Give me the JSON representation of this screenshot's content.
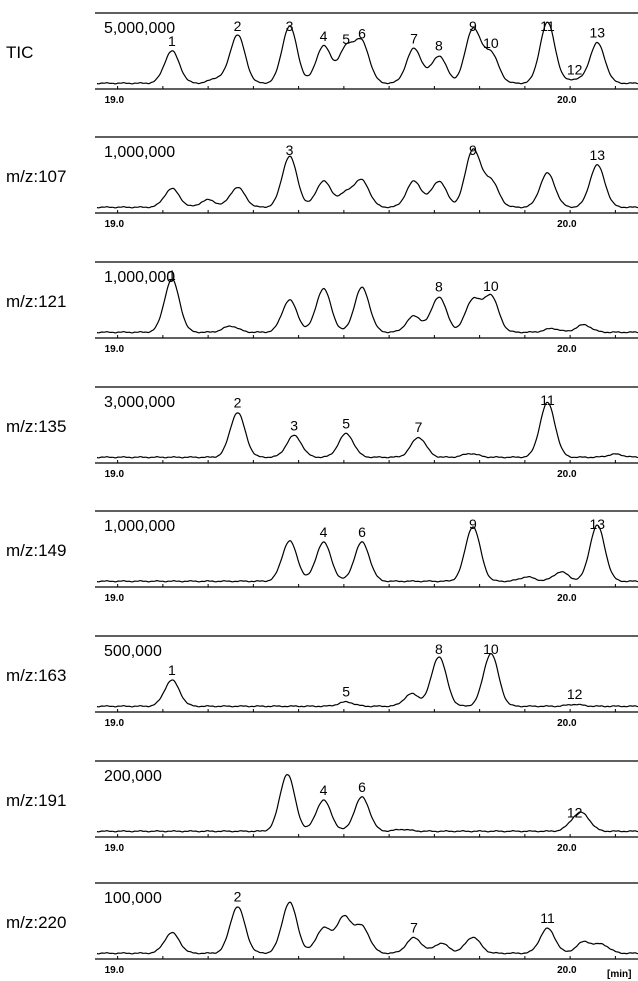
{
  "figure": {
    "x_unit": "[min]"
  },
  "chart_data": [
    {
      "type": "line",
      "label": "TIC",
      "scale": "5,000,000",
      "x_ticks": [
        "19.0",
        "20.0"
      ],
      "x_range": [
        18.95,
        20.15
      ],
      "y_max": 100,
      "peaks": [
        {
          "id": "1",
          "rt": 19.12,
          "h": 52,
          "label": "1"
        },
        {
          "id": "s1",
          "rt": 19.22,
          "h": 8,
          "label": ""
        },
        {
          "id": "2",
          "rt": 19.265,
          "h": 78,
          "label": "2"
        },
        {
          "id": "3",
          "rt": 19.38,
          "h": 92,
          "label": "3"
        },
        {
          "id": "4",
          "rt": 19.455,
          "h": 60,
          "label": "4"
        },
        {
          "id": "5",
          "rt": 19.505,
          "h": 55,
          "label": "5"
        },
        {
          "id": "6",
          "rt": 19.54,
          "h": 64,
          "label": "6"
        },
        {
          "id": "7",
          "rt": 19.655,
          "h": 56,
          "label": "7"
        },
        {
          "id": "8",
          "rt": 19.71,
          "h": 44,
          "label": "8"
        },
        {
          "id": "9",
          "rt": 19.785,
          "h": 87,
          "label": "9"
        },
        {
          "id": "10",
          "rt": 19.825,
          "h": 48,
          "label": "10"
        },
        {
          "id": "11",
          "rt": 19.95,
          "h": 98,
          "label": "11"
        },
        {
          "id": "12",
          "rt": 20.01,
          "h": 6,
          "label": "12"
        },
        {
          "id": "13",
          "rt": 20.06,
          "h": 65,
          "label": "13"
        }
      ]
    },
    {
      "type": "line",
      "label": "m/z:107",
      "scale": "1,000,000",
      "x_ticks": [
        "19.0",
        "20.0"
      ],
      "x_range": [
        18.95,
        20.15
      ],
      "y_max": 100,
      "peaks": [
        {
          "id": "1",
          "rt": 19.12,
          "h": 30,
          "label": ""
        },
        {
          "id": "s1",
          "rt": 19.2,
          "h": 12,
          "label": ""
        },
        {
          "id": "2",
          "rt": 19.265,
          "h": 32,
          "label": ""
        },
        {
          "id": "3",
          "rt": 19.38,
          "h": 82,
          "label": "3"
        },
        {
          "id": "4",
          "rt": 19.455,
          "h": 42,
          "label": ""
        },
        {
          "id": "5",
          "rt": 19.505,
          "h": 22,
          "label": ""
        },
        {
          "id": "6",
          "rt": 19.54,
          "h": 42,
          "label": ""
        },
        {
          "id": "7",
          "rt": 19.655,
          "h": 42,
          "label": ""
        },
        {
          "id": "8",
          "rt": 19.71,
          "h": 42,
          "label": ""
        },
        {
          "id": "9",
          "rt": 19.785,
          "h": 92,
          "label": "9"
        },
        {
          "id": "10",
          "rt": 19.825,
          "h": 42,
          "label": ""
        },
        {
          "id": "11",
          "rt": 19.95,
          "h": 55,
          "label": ""
        },
        {
          "id": "13",
          "rt": 20.06,
          "h": 68,
          "label": "13"
        }
      ]
    },
    {
      "type": "line",
      "label": "m/z:121",
      "scale": "1,000,000",
      "x_ticks": [
        "19.0",
        "20.0"
      ],
      "x_range": [
        18.95,
        20.15
      ],
      "y_max": 100,
      "peaks": [
        {
          "id": "1",
          "rt": 19.12,
          "h": 85,
          "label": "1"
        },
        {
          "id": "s1",
          "rt": 19.25,
          "h": 10,
          "label": ""
        },
        {
          "id": "3",
          "rt": 19.38,
          "h": 52,
          "label": ""
        },
        {
          "id": "4",
          "rt": 19.455,
          "h": 70,
          "label": ""
        },
        {
          "id": "6",
          "rt": 19.54,
          "h": 72,
          "label": ""
        },
        {
          "id": "7",
          "rt": 19.655,
          "h": 26,
          "label": ""
        },
        {
          "id": "8",
          "rt": 19.71,
          "h": 57,
          "label": "8"
        },
        {
          "id": "9",
          "rt": 19.785,
          "h": 52,
          "label": ""
        },
        {
          "id": "10",
          "rt": 19.825,
          "h": 58,
          "label": "10"
        },
        {
          "id": "s2",
          "rt": 19.96,
          "h": 6,
          "label": ""
        },
        {
          "id": "s3",
          "rt": 20.03,
          "h": 12,
          "label": ""
        }
      ]
    },
    {
      "type": "line",
      "label": "m/z:135",
      "scale": "3,000,000",
      "x_ticks": [
        "19.0",
        "20.0"
      ],
      "x_range": [
        18.95,
        20.15
      ],
      "y_max": 100,
      "peaks": [
        {
          "id": "2",
          "rt": 19.265,
          "h": 72,
          "label": "2"
        },
        {
          "id": "3",
          "rt": 19.39,
          "h": 35,
          "label": "3"
        },
        {
          "id": "5",
          "rt": 19.505,
          "h": 38,
          "label": "5"
        },
        {
          "id": "7",
          "rt": 19.665,
          "h": 32,
          "label": "7"
        },
        {
          "id": "s1",
          "rt": 19.78,
          "h": 6,
          "label": ""
        },
        {
          "id": "11",
          "rt": 19.95,
          "h": 88,
          "label": "11"
        },
        {
          "id": "s2",
          "rt": 20.1,
          "h": 5,
          "label": ""
        }
      ]
    },
    {
      "type": "line",
      "label": "m/z:149",
      "scale": "1,000,000",
      "x_ticks": [
        "19.0",
        "20.0"
      ],
      "x_range": [
        18.95,
        20.15
      ],
      "y_max": 100,
      "peaks": [
        {
          "id": "3",
          "rt": 19.38,
          "h": 65,
          "label": ""
        },
        {
          "id": "4",
          "rt": 19.455,
          "h": 63,
          "label": "4"
        },
        {
          "id": "6",
          "rt": 19.54,
          "h": 63,
          "label": "6"
        },
        {
          "id": "9",
          "rt": 19.785,
          "h": 88,
          "label": "9"
        },
        {
          "id": "s1",
          "rt": 19.905,
          "h": 7,
          "label": ""
        },
        {
          "id": "s2",
          "rt": 19.98,
          "h": 15,
          "label": ""
        },
        {
          "id": "13",
          "rt": 20.06,
          "h": 90,
          "label": "13"
        }
      ]
    },
    {
      "type": "line",
      "label": "m/z:163",
      "scale": "500,000",
      "x_ticks": [
        "19.0",
        "20.0"
      ],
      "x_range": [
        18.95,
        20.15
      ],
      "y_max": 100,
      "peaks": [
        {
          "id": "1",
          "rt": 19.12,
          "h": 42,
          "label": "1"
        },
        {
          "id": "5",
          "rt": 19.505,
          "h": 7,
          "label": "5"
        },
        {
          "id": "7",
          "rt": 19.65,
          "h": 20,
          "label": ""
        },
        {
          "id": "8",
          "rt": 19.71,
          "h": 80,
          "label": "8"
        },
        {
          "id": "10",
          "rt": 19.825,
          "h": 85,
          "label": "10"
        },
        {
          "id": "12",
          "rt": 20.01,
          "h": 3,
          "label": "12"
        }
      ]
    },
    {
      "type": "line",
      "label": "m/z:191",
      "scale": "200,000",
      "x_ticks": [
        "19.0",
        "20.0"
      ],
      "x_range": [
        18.95,
        20.15
      ],
      "y_max": 100,
      "peaks": [
        {
          "id": "3",
          "rt": 19.375,
          "h": 92,
          "label": ""
        },
        {
          "id": "4",
          "rt": 19.455,
          "h": 50,
          "label": "4"
        },
        {
          "id": "6",
          "rt": 19.54,
          "h": 55,
          "label": "6"
        },
        {
          "id": "s1",
          "rt": 19.63,
          "h": 3,
          "label": ""
        },
        {
          "id": "12",
          "rt": 20.01,
          "h": 14,
          "label": "12"
        },
        {
          "id": "s2",
          "rt": 20.03,
          "h": 22,
          "label": ""
        }
      ]
    },
    {
      "type": "line",
      "label": "m/z:220",
      "scale": "100,000",
      "x_ticks": [
        "19.0",
        "20.0"
      ],
      "x_range": [
        18.95,
        20.15
      ],
      "y_max": 100,
      "peaks": [
        {
          "id": "1",
          "rt": 19.12,
          "h": 33,
          "label": ""
        },
        {
          "id": "2",
          "rt": 19.265,
          "h": 75,
          "label": "2"
        },
        {
          "id": "3",
          "rt": 19.38,
          "h": 82,
          "label": ""
        },
        {
          "id": "4",
          "rt": 19.455,
          "h": 40,
          "label": ""
        },
        {
          "id": "5",
          "rt": 19.5,
          "h": 57,
          "label": ""
        },
        {
          "id": "6",
          "rt": 19.54,
          "h": 42,
          "label": ""
        },
        {
          "id": "7",
          "rt": 19.655,
          "h": 25,
          "label": "7"
        },
        {
          "id": "8",
          "rt": 19.715,
          "h": 16,
          "label": ""
        },
        {
          "id": "9",
          "rt": 19.785,
          "h": 26,
          "label": ""
        },
        {
          "id": "11",
          "rt": 19.95,
          "h": 40,
          "label": "11"
        },
        {
          "id": "s1",
          "rt": 20.03,
          "h": 18,
          "label": ""
        },
        {
          "id": "s2",
          "rt": 20.07,
          "h": 14,
          "label": ""
        }
      ]
    }
  ]
}
